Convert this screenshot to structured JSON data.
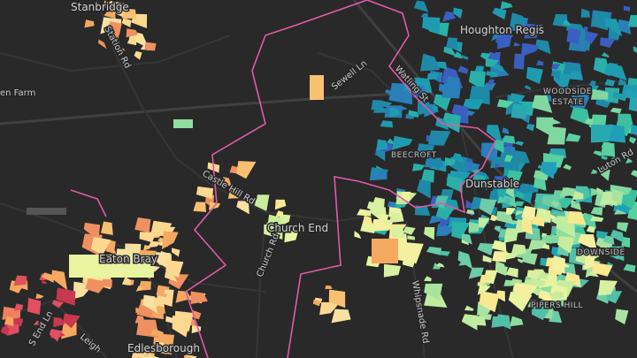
{
  "labels": [
    "Stanbridge",
    "Station Rd",
    "Sewell Ln",
    "Watling St",
    "Houghton Regis",
    "WOODSIDE",
    "ESTATE",
    "Luton Rd",
    "en Farm",
    "BEECROFT",
    "Dunstable",
    "Castle Hill Rd",
    "Church End",
    "Church Rd",
    "Eaton Bray",
    "Whipsnade Rd",
    "DOWNSIDE",
    "PIPERS HILL",
    "Edlesborough",
    "S End Ln",
    "Leigh"
  ]
}
